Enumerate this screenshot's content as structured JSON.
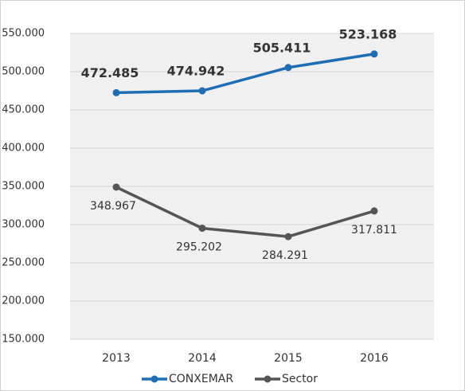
{
  "chart_data": {
    "type": "line",
    "categories": [
      "2013",
      "2014",
      "2015",
      "2016"
    ],
    "series": [
      {
        "name": "CONXEMAR",
        "color": "#1f6db4",
        "values": [
          472485,
          474942,
          505411,
          523168
        ],
        "value_labels": [
          "472.485",
          "474.942",
          "505.411",
          "523.168"
        ]
      },
      {
        "name": "Sector",
        "color": "#555555",
        "values": [
          348967,
          295202,
          284291,
          317811
        ],
        "value_labels": [
          "348.967",
          "295.202",
          "284.291",
          "317.811"
        ]
      }
    ],
    "ylim": [
      150000,
      550000
    ],
    "yticks": [
      {
        "value": 150000,
        "label": "150.000"
      },
      {
        "value": 200000,
        "label": "200.000"
      },
      {
        "value": 250000,
        "label": "250.000"
      },
      {
        "value": 300000,
        "label": "300.000"
      },
      {
        "value": 350000,
        "label": "350.000"
      },
      {
        "value": 400000,
        "label": "400.000"
      },
      {
        "value": 450000,
        "label": "450.000"
      },
      {
        "value": 500000,
        "label": "500.000"
      },
      {
        "value": 550000,
        "label": "550.000"
      }
    ],
    "grid": true,
    "legend": "bottom"
  }
}
